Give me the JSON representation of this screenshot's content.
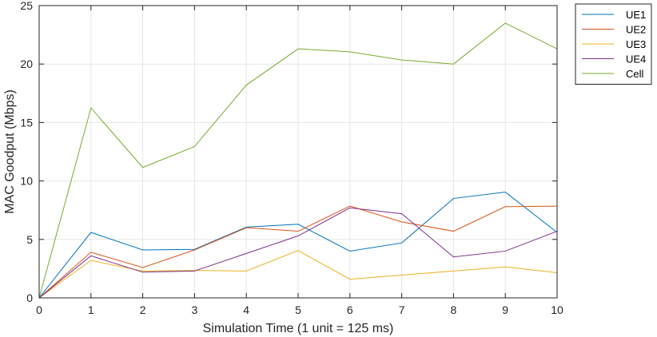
{
  "chart_data": {
    "type": "line",
    "title": "",
    "xlabel": "Simulation Time (1 unit = 125 ms)",
    "ylabel": "MAC Goodput (Mbps)",
    "xlim": [
      0,
      10
    ],
    "ylim": [
      0,
      25
    ],
    "xticks": [
      0,
      1,
      2,
      3,
      4,
      5,
      6,
      7,
      8,
      9,
      10
    ],
    "yticks": [
      0,
      5,
      10,
      15,
      20,
      25
    ],
    "grid": true,
    "legend_position": "outside top-right",
    "x": [
      0,
      1,
      2,
      3,
      4,
      5,
      6,
      7,
      8,
      9,
      10
    ],
    "series": [
      {
        "name": "UE1",
        "color": "#0072BD",
        "values": [
          0,
          5.6,
          4.1,
          4.15,
          6.05,
          6.3,
          4.0,
          4.7,
          8.5,
          9.05,
          5.6
        ]
      },
      {
        "name": "UE2",
        "color": "#D95319",
        "values": [
          0,
          3.9,
          2.6,
          4.1,
          6.0,
          5.7,
          7.85,
          6.5,
          5.7,
          7.8,
          7.85
        ]
      },
      {
        "name": "UE3",
        "color": "#EDB120",
        "values": [
          0,
          3.2,
          2.3,
          2.35,
          2.3,
          4.05,
          1.6,
          1.95,
          2.3,
          2.65,
          2.15
        ]
      },
      {
        "name": "UE4",
        "color": "#7E2F8E",
        "values": [
          0,
          3.6,
          2.2,
          2.3,
          3.8,
          5.3,
          7.7,
          7.2,
          3.5,
          4.0,
          5.7
        ]
      },
      {
        "name": "Cell",
        "color": "#77AC30",
        "values": [
          0,
          16.25,
          11.15,
          12.95,
          18.2,
          21.3,
          21.05,
          20.35,
          20.0,
          23.5,
          21.3
        ]
      }
    ]
  }
}
